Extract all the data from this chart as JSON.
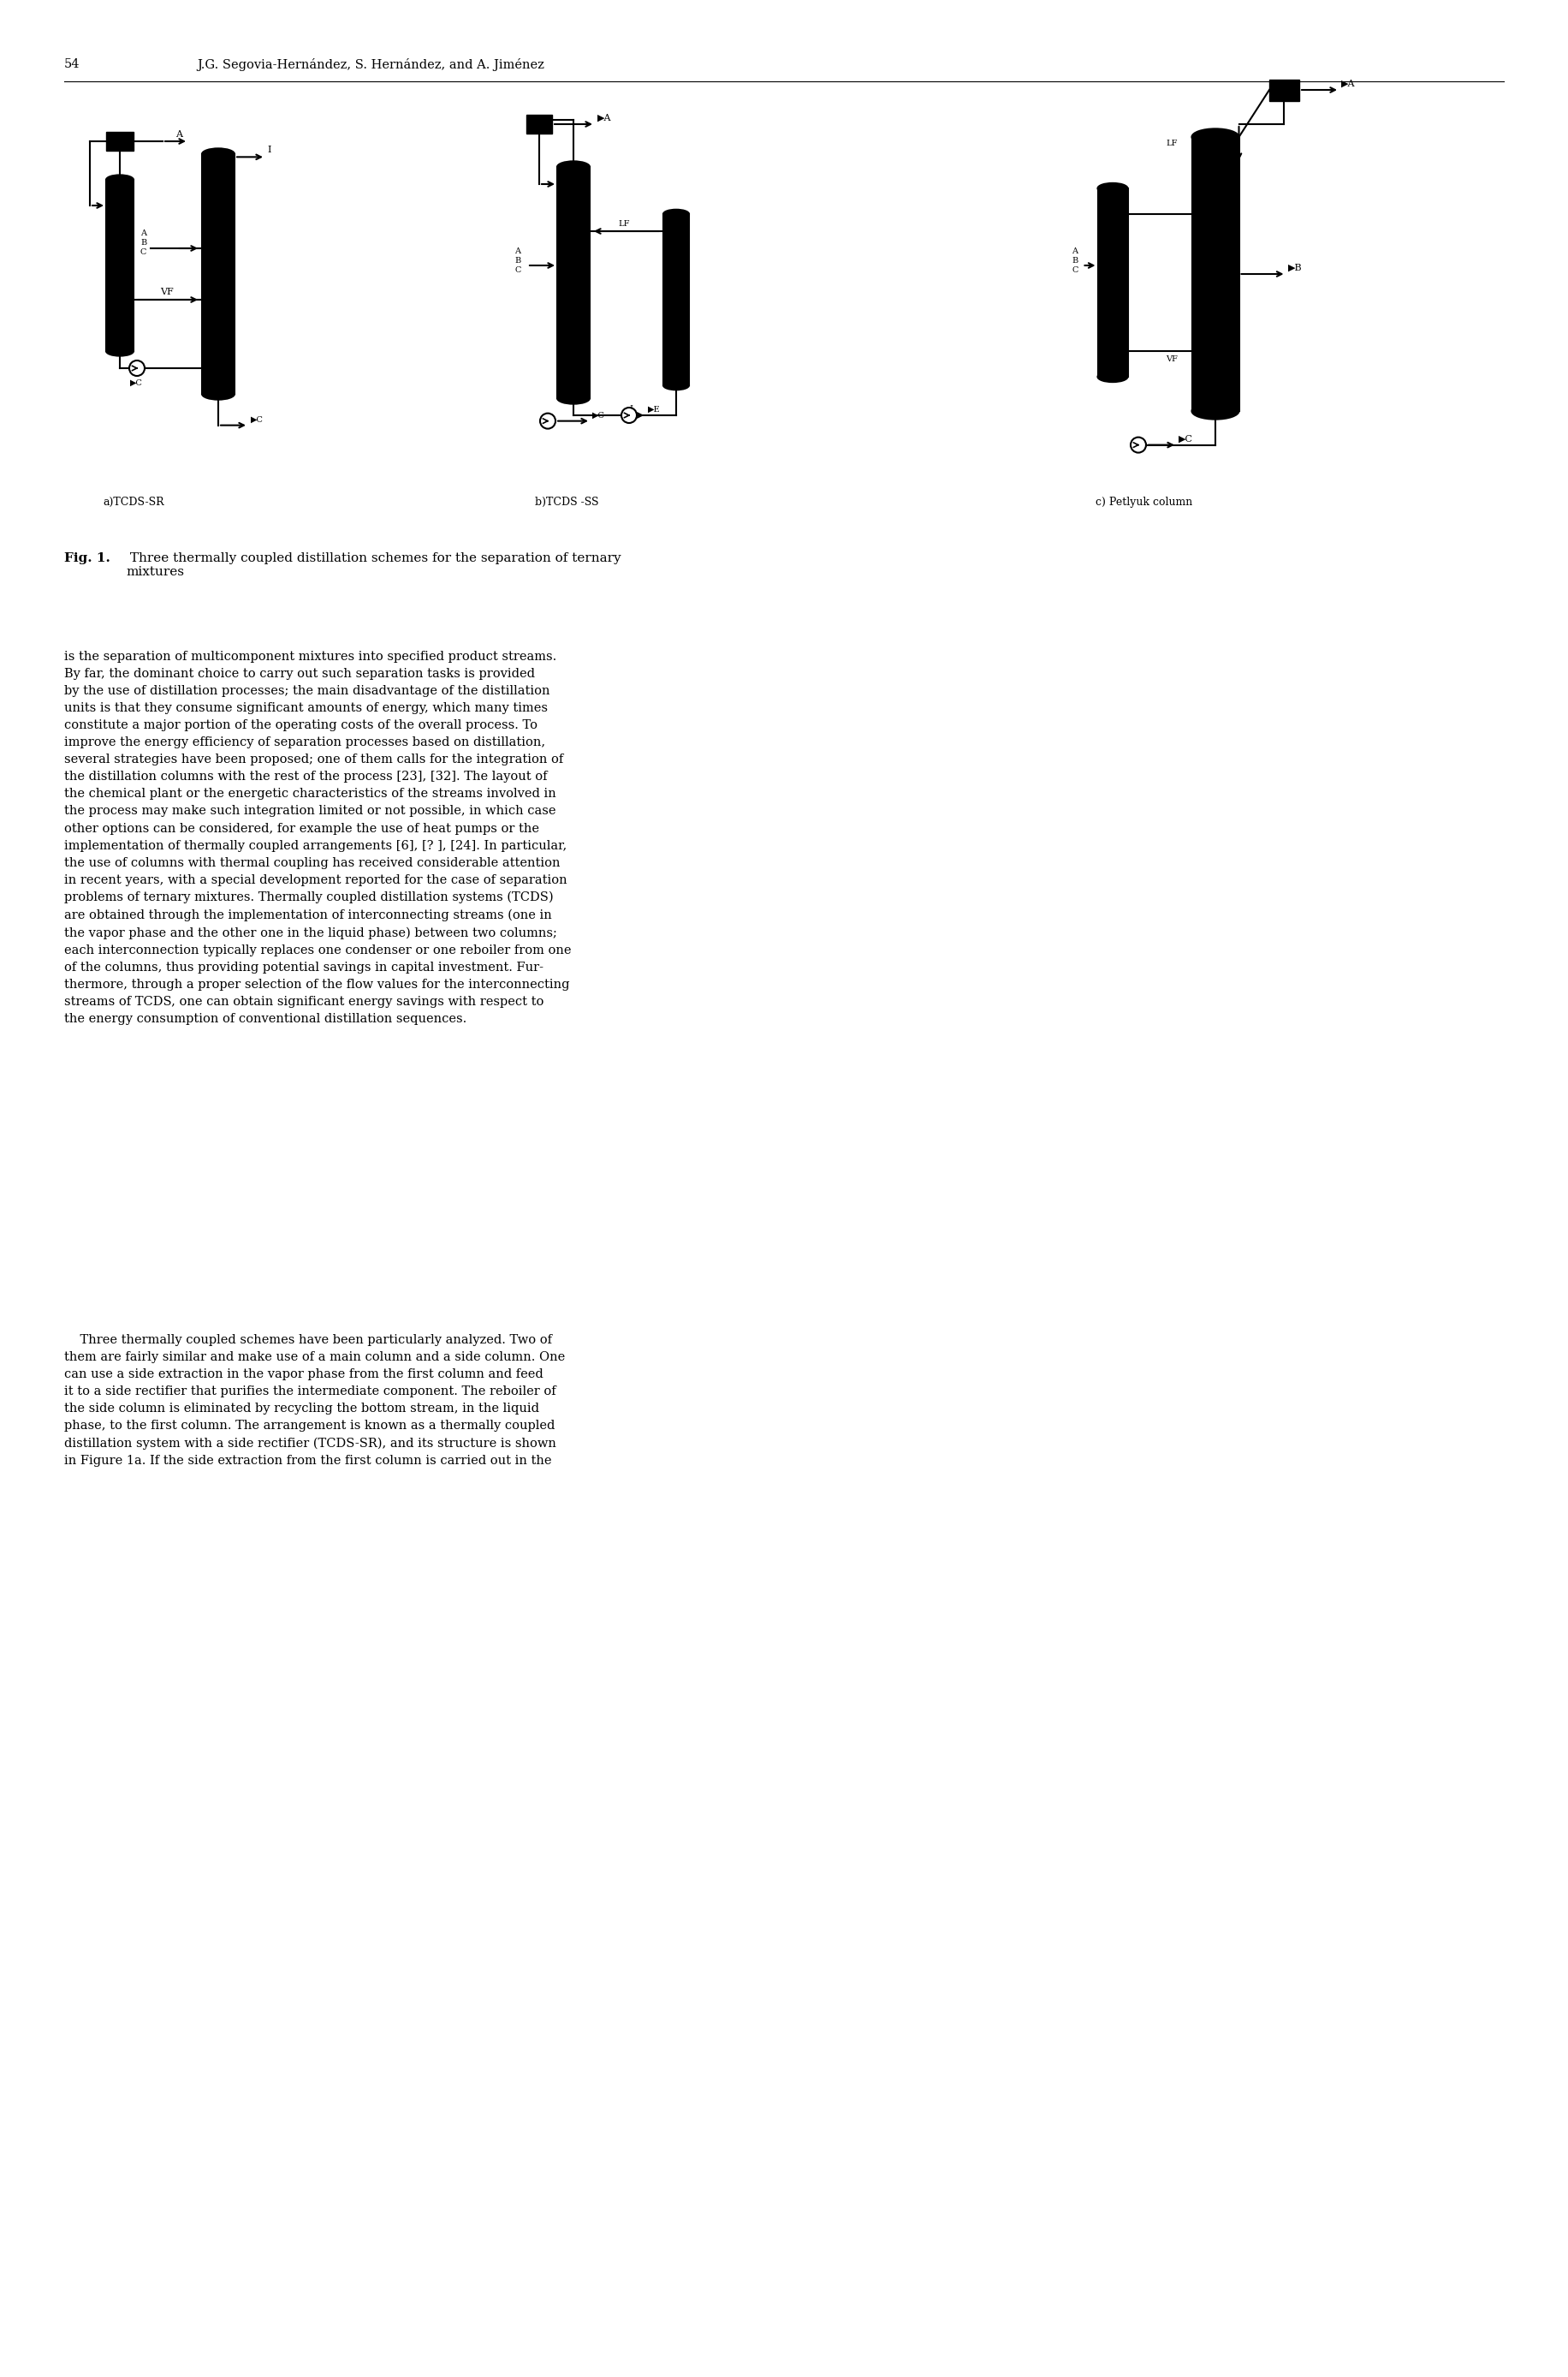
{
  "page_number": "54",
  "header_text": "J.G. Segovia-Hernández, S. Hernández, and A. Jiménez",
  "fig_caption_bold": "Fig. 1.",
  "fig_caption_rest": " Three thermally coupled distillation schemes for the separation of ternary\nmixtures",
  "diagram_labels": [
    "a)TCDS-SR",
    "b)TCDS -SS",
    "c) Petlyuk column"
  ],
  "body_text": [
    "is the separation of multicomponent mixtures into specified product streams.\nBy far, the dominant choice to carry out such separation tasks is provided\nby the use of distillation processes; the main disadvantage of the distillation\nunits is that they consume significant amounts of energy, which many times\nconstitute a major portion of the operating costs of the overall process. To\nimprove the energy efficiency of separation processes based on distillation,\nseveral strategies have been proposed; one of them calls for the integration of\nthe distillation columns with the rest of the process [23], [32]. The layout of\nthe chemical plant or the energetic characteristics of the streams involved in\nthe process may make such integration limited or not possible, in which case\nother options can be considered, for example the use of heat pumps or the\nimplementation of thermally coupled arrangements [6], [? ], [24]. In particular,\nthe use of columns with thermal coupling has received considerable attention\nin recent years, with a special development reported for the case of separation\nproblems of ternary mixtures. Thermally coupled distillation systems (TCDS)\nare obtained through the implementation of interconnecting streams (one in\nthe vapor phase and the other one in the liquid phase) between two columns;\neach interconnection typically replaces one condenser or one reboiler from one\nof the columns, thus providing potential savings in capital investment. Fur-\nthermore, through a proper selection of the flow values for the interconnecting\nstreams of TCDS, one can obtain significant energy savings with respect to\nthe energy consumption of conventional distillation sequences.",
    "    Three thermally coupled schemes have been particularly analyzed. Two of\nthem are fairly similar and make use of a main column and a side column. One\ncan use a side extraction in the vapor phase from the first column and feed\nit to a side rectifier that purifies the intermediate component. The reboiler of\nthe side column is eliminated by recycling the bottom stream, in the liquid\nphase, to the first column. The arrangement is known as a thermally coupled\ndistillation system with a side rectifier (TCDS-SR), and its structure is shown\nin Figure 1a. If the side extraction from the first column is carried out in the"
  ],
  "background_color": "#ffffff",
  "text_color": "#000000",
  "font_size_body": 10.5,
  "font_size_header": 10.5,
  "font_size_caption_bold": 11.0,
  "font_size_caption": 11.0,
  "font_size_diagram_label": 9.0
}
